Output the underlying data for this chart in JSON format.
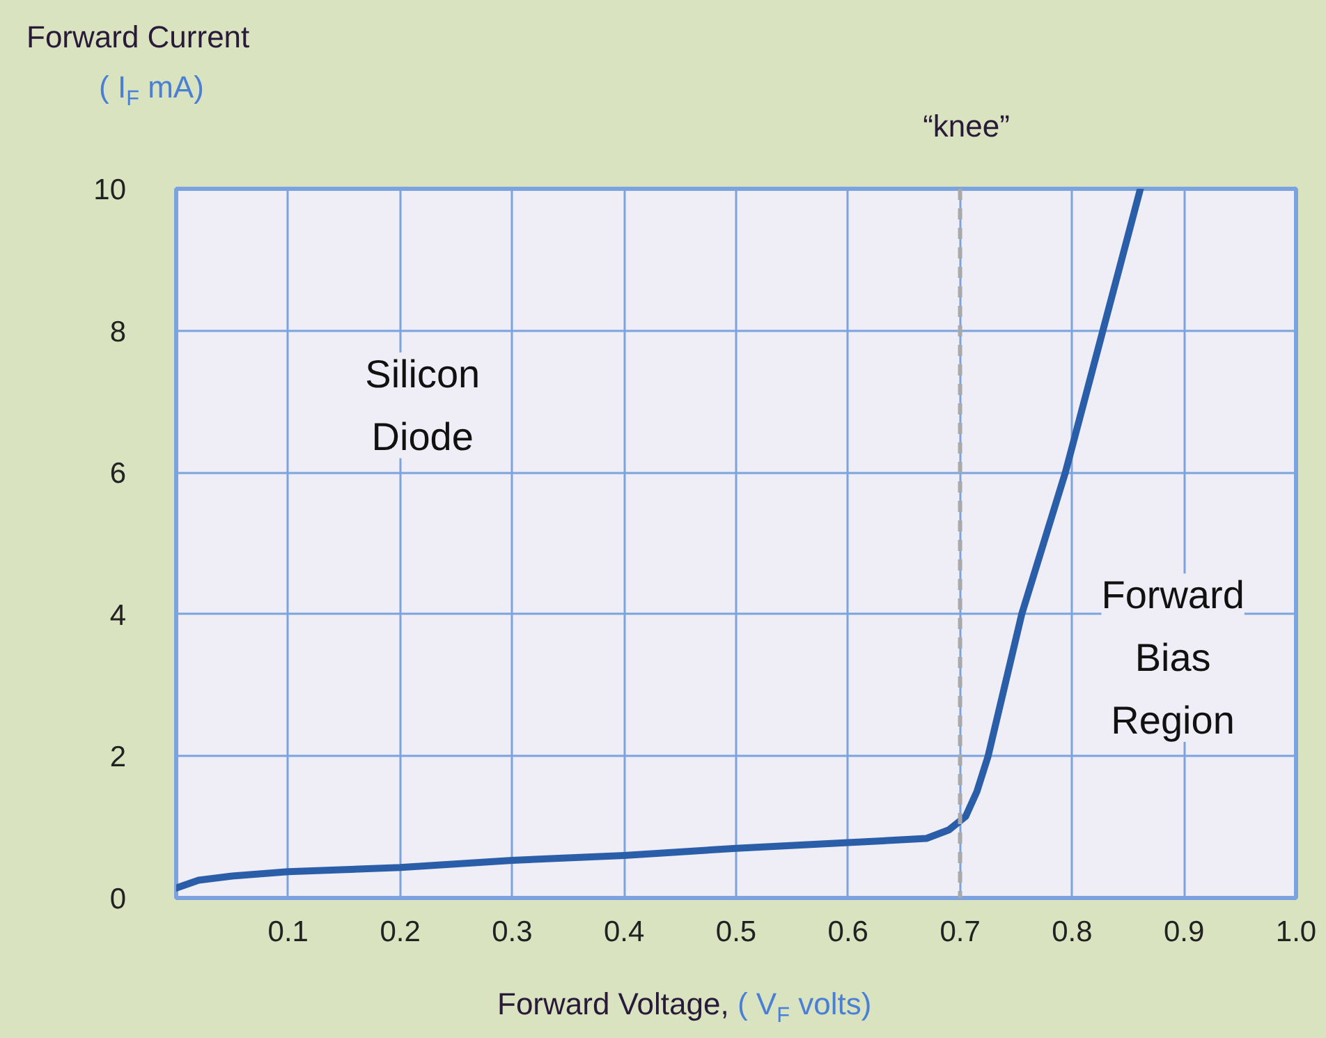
{
  "chart_data": {
    "type": "line",
    "xlabel": "Forward Voltage, ( V$_{F}$ volts)",
    "ylabel": "Forward Current\n( I$_{F}$ mA)",
    "x": [
      0,
      0.02,
      0.05,
      0.1,
      0.2,
      0.3,
      0.4,
      0.5,
      0.6,
      0.67,
      0.69,
      0.705,
      0.715,
      0.725,
      0.755,
      0.794,
      0.861
    ],
    "series": [
      {
        "color": "#2b5ea8",
        "values": [
          0.14,
          0.25,
          0.31,
          0.37,
          0.43,
          0.53,
          0.6,
          0.7,
          0.78,
          0.84,
          0.96,
          1.15,
          1.5,
          2,
          4,
          6,
          10
        ]
      }
    ],
    "xlim": [
      0,
      1.0
    ],
    "ylim": [
      0,
      10
    ],
    "xticks": [
      0.1,
      0.2,
      0.3,
      0.4,
      0.5,
      0.6,
      0.7,
      0.8,
      0.9,
      {
        "value": 1.0,
        "label": "1.0"
      }
    ],
    "yticks": [
      0,
      2,
      4,
      6,
      8,
      10
    ],
    "grid": true,
    "line_style": "solid",
    "ref_lines": [
      {
        "axis": "x",
        "value": 0.7,
        "label": "“knee”",
        "color": "#a9a9a9",
        "line_style": "dashed"
      }
    ],
    "annotations": [
      "Silicon\nDiode",
      "Forward\nBias\nRegion"
    ]
  }
}
